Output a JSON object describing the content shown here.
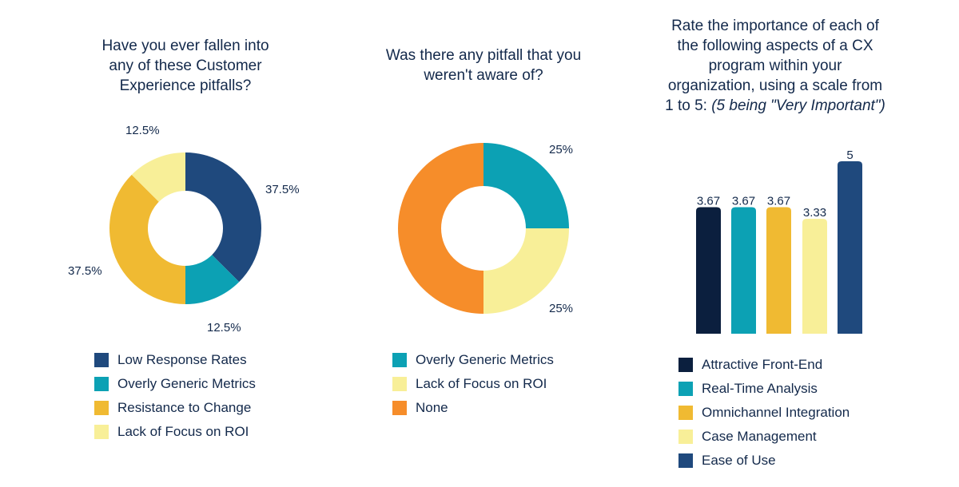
{
  "chart_data": [
    {
      "type": "pie",
      "variant": "donut",
      "title": "Have you ever fallen into any of these Customer Experience pitfalls?",
      "title_lines": [
        "Have you ever fallen into",
        "any of these Customer",
        "Experience pitfalls?"
      ],
      "slices": [
        {
          "label": "Low Response Rates",
          "value": 37.5,
          "display": "37.5%",
          "color": "#1f497d"
        },
        {
          "label": "Overly Generic Metrics",
          "value": 12.5,
          "display": "12.5%",
          "color": "#0ca1b4"
        },
        {
          "label": "Resistance to Change",
          "value": 37.5,
          "display": "37.5%",
          "color": "#f0ba32"
        },
        {
          "label": "Lack of Focus on ROI",
          "value": 12.5,
          "display": "12.5%",
          "color": "#f8ef98"
        }
      ],
      "legend": [
        "Low Response Rates",
        "Overly Generic Metrics",
        "Resistance to Change",
        "Lack of Focus on ROI"
      ],
      "legend_position": "bottom"
    },
    {
      "type": "pie",
      "variant": "donut",
      "title": "Was there any pitfall that you weren't aware of?",
      "title_lines": [
        "Was there any pitfall that you",
        "weren't aware of?"
      ],
      "slices": [
        {
          "label": "Overly Generic Metrics",
          "value": 25,
          "display": "25%",
          "color": "#0ca1b4"
        },
        {
          "label": "Lack of Focus on ROI",
          "value": 25,
          "display": "25%",
          "color": "#f8ef98"
        },
        {
          "label": "None",
          "value": 50,
          "display": "",
          "color": "#f68d2a"
        }
      ],
      "legend": [
        "Overly Generic Metrics",
        "Lack of Focus on ROI",
        "None"
      ],
      "legend_position": "bottom"
    },
    {
      "type": "bar",
      "title": "Rate the importance of each of the following aspects of a CX program within your organization, using a scale from 1 to 5: (5 being \"Very Important\")",
      "title_lines": [
        "Rate the importance of each of",
        "the following aspects of a CX",
        "program within your",
        "organization, using a scale from"
      ],
      "title_last_line_plain": "1 to 5: ",
      "title_last_line_italic": "(5 being \"Very Important\")",
      "categories": [
        "Attractive Front-End",
        "Real-Time Analysis",
        "Omnichannel Integration",
        "Case Management",
        "Ease of Use"
      ],
      "values": [
        3.67,
        3.67,
        3.67,
        3.33,
        5
      ],
      "value_labels": [
        "3.67",
        "3.67",
        "3.67",
        "3.33",
        "5"
      ],
      "colors": [
        "#0b1f3e",
        "#0ca1b4",
        "#f0ba32",
        "#f8ef98",
        "#1f497d"
      ],
      "ylim": [
        0,
        5
      ],
      "grid": false,
      "xlabel": "",
      "ylabel": "",
      "legend_position": "bottom"
    }
  ]
}
